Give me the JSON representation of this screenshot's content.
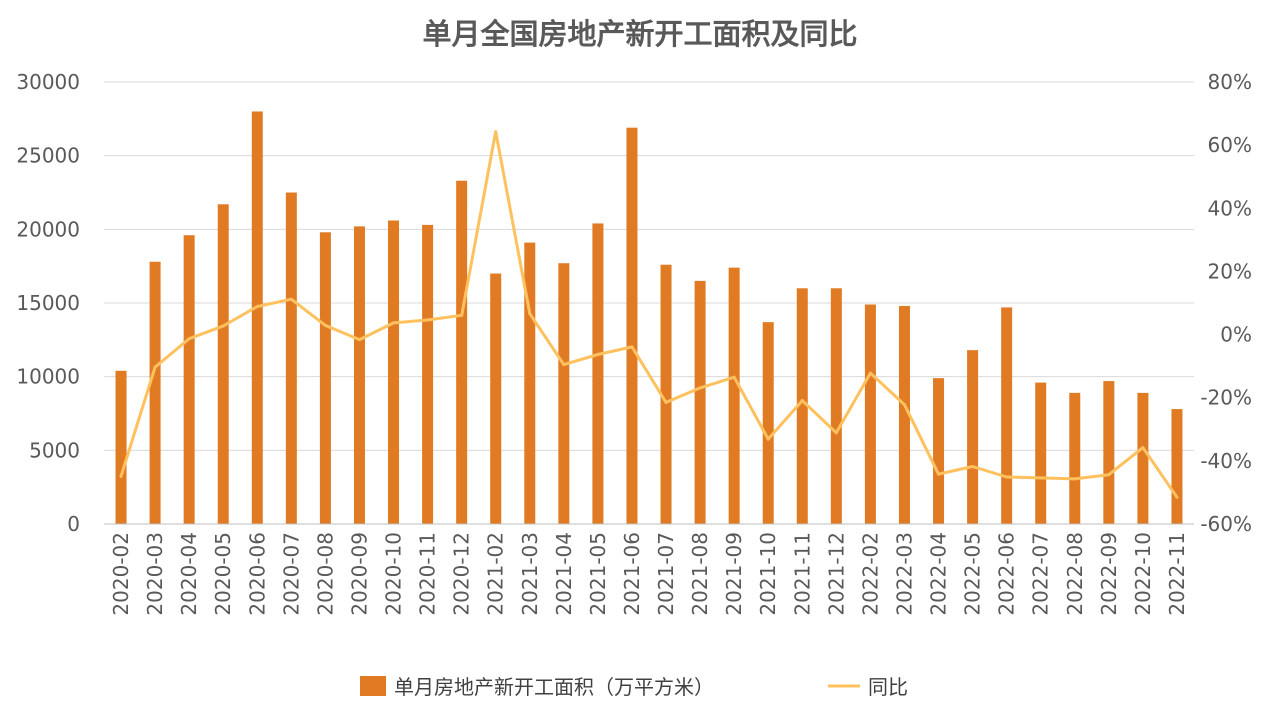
{
  "chart_data": {
    "type": "bar+line",
    "title": "单月全国房地产新开工面积及同比",
    "categories": [
      "2020-02",
      "2020-03",
      "2020-04",
      "2020-05",
      "2020-06",
      "2020-07",
      "2020-08",
      "2020-09",
      "2020-10",
      "2020-11",
      "2020-12",
      "2021-02",
      "2021-03",
      "2021-04",
      "2021-05",
      "2021-06",
      "2021-07",
      "2021-08",
      "2021-09",
      "2021-10",
      "2021-11",
      "2021-12",
      "2022-02",
      "2022-03",
      "2022-04",
      "2022-05",
      "2022-06",
      "2022-07",
      "2022-08",
      "2022-09",
      "2022-10",
      "2022-11"
    ],
    "series": [
      {
        "name": "单月房地产新开工面积（万平方米）",
        "type": "bar",
        "axis": "left",
        "color": "#E07B24",
        "values": [
          10400,
          17800,
          19600,
          21700,
          28000,
          22500,
          19800,
          20200,
          20600,
          20300,
          23300,
          17000,
          19100,
          17700,
          20400,
          26900,
          17600,
          16500,
          17400,
          13700,
          16000,
          16000,
          14900,
          14800,
          9900,
          11800,
          14700,
          9600,
          8900,
          9700,
          8900,
          7800
        ]
      },
      {
        "name": "同比",
        "type": "line",
        "axis": "right",
        "color": "#FFC15E",
        "values": [
          -44.9,
          -10.3,
          -1.3,
          2.7,
          8.9,
          11.2,
          2.9,
          -1.6,
          3.7,
          4.6,
          6.1,
          64.3,
          6.6,
          -9.5,
          -6.3,
          -3.9,
          -21.5,
          -16.9,
          -13.5,
          -33.1,
          -20.9,
          -31.1,
          -12.2,
          -22.2,
          -44.2,
          -41.8,
          -45.1,
          -45.4,
          -45.7,
          -44.4,
          -35.8,
          -51.5
        ]
      }
    ],
    "y_left": {
      "min": 0,
      "max": 30000,
      "ticks": [
        0,
        5000,
        10000,
        15000,
        20000,
        25000,
        30000
      ],
      "tick_labels": [
        "0",
        "5000",
        "10000",
        "15000",
        "20000",
        "25000",
        "30000"
      ]
    },
    "y_right": {
      "min": -60,
      "max": 80,
      "ticks": [
        -60,
        -40,
        -20,
        0,
        20,
        40,
        60,
        80
      ],
      "tick_labels": [
        "-60%",
        "-40%",
        "-20%",
        "0%",
        "20%",
        "40%",
        "60%",
        "80%"
      ]
    },
    "grid": true,
    "legend_position": "bottom"
  }
}
